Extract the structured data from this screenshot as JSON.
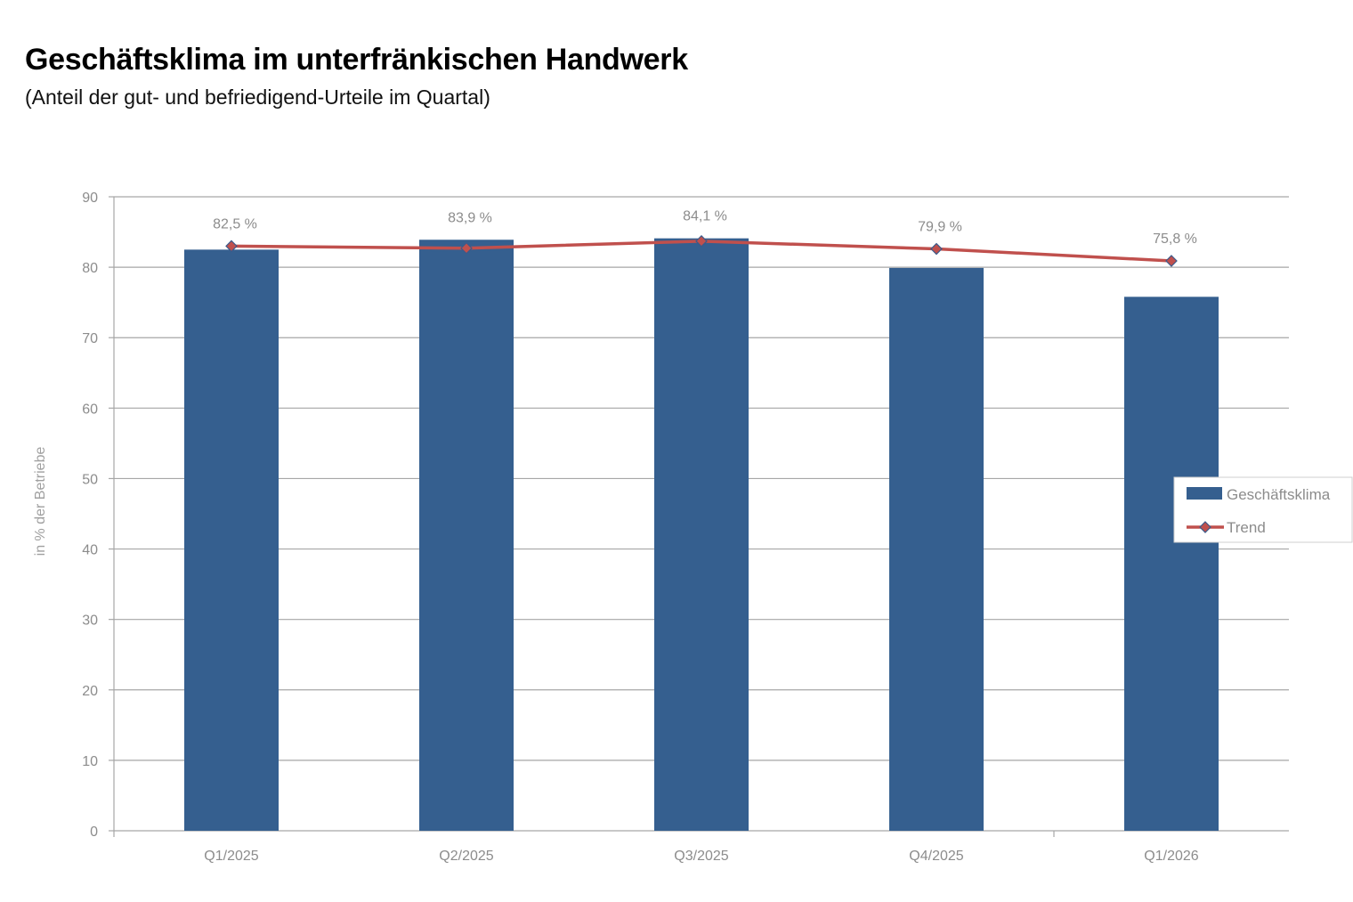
{
  "header": {
    "title": "Geschäftsklima im unterfränkischen Handwerk",
    "subtitle": "(Anteil der gut- und befriedigend-Urteile im Quartal)"
  },
  "chart_data": {
    "type": "bar",
    "categories": [
      "Q1/2025",
      "Q2/2025",
      "Q3/2025",
      "Q4/2025",
      "Q1/2026"
    ],
    "series": [
      {
        "name": "Geschäftsklima",
        "type": "bar",
        "color": "#355f8f",
        "values": [
          82.5,
          83.9,
          84.1,
          79.9,
          75.8
        ],
        "labels": [
          "82,5 %",
          "83,9 %",
          "84,1 %",
          "79,9 %",
          "75,8 %"
        ]
      },
      {
        "name": "Trend",
        "type": "line",
        "color": "#c0504d",
        "marker": "diamond",
        "values": [
          83.0,
          82.7,
          83.7,
          82.6,
          80.9
        ]
      }
    ],
    "xlabel": "",
    "ylabel": "in % der Betriebe",
    "ylim": [
      0,
      90
    ],
    "yticks": [
      0,
      10,
      20,
      30,
      40,
      50,
      60,
      70,
      80,
      90
    ],
    "grid": true,
    "legend": "right"
  }
}
